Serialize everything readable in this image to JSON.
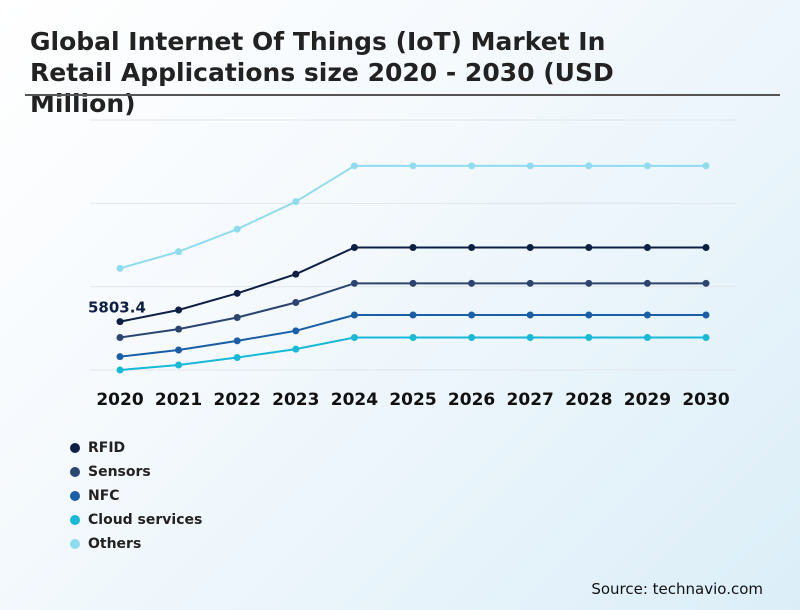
{
  "title": "Global Internet Of Things (IoT) Market In Retail Applications size 2020 - 2030 (USD Million)",
  "source": "Source: technavio.com",
  "chart_data": {
    "type": "line",
    "categories": [
      "2020",
      "2021",
      "2022",
      "2023",
      "2024",
      "2025",
      "2026",
      "2027",
      "2028",
      "2029",
      "2030"
    ],
    "ylim": [
      0,
      30000
    ],
    "grid": true,
    "legend_position": "bottom-left",
    "annotations": [
      {
        "series": "RFID",
        "x": "2020",
        "label": "5803.4"
      }
    ],
    "series": [
      {
        "name": "RFID",
        "color": "#0d1f45",
        "values": [
          5803.4,
          7200,
          9200,
          11500,
          14700,
          14700,
          14700,
          14700,
          14700,
          14700,
          14700
        ]
      },
      {
        "name": "Sensors",
        "color": "#2c4470",
        "values": [
          3900,
          4900,
          6300,
          8100,
          10400,
          10400,
          10400,
          10400,
          10400,
          10400,
          10400
        ]
      },
      {
        "name": "NFC",
        "color": "#1a5ea6",
        "values": [
          1600,
          2400,
          3500,
          4700,
          6600,
          6600,
          6600,
          6600,
          6600,
          6600,
          6600
        ]
      },
      {
        "name": "Cloud services",
        "color": "#17b9d6",
        "values": [
          0,
          600,
          1500,
          2500,
          3900,
          3900,
          3900,
          3900,
          3900,
          3900,
          3900
        ]
      },
      {
        "name": "Others",
        "color": "#8fdcef",
        "values": [
          12200,
          14200,
          16900,
          20200,
          24500,
          24500,
          24500,
          24500,
          24500,
          24500,
          24500
        ]
      }
    ]
  }
}
